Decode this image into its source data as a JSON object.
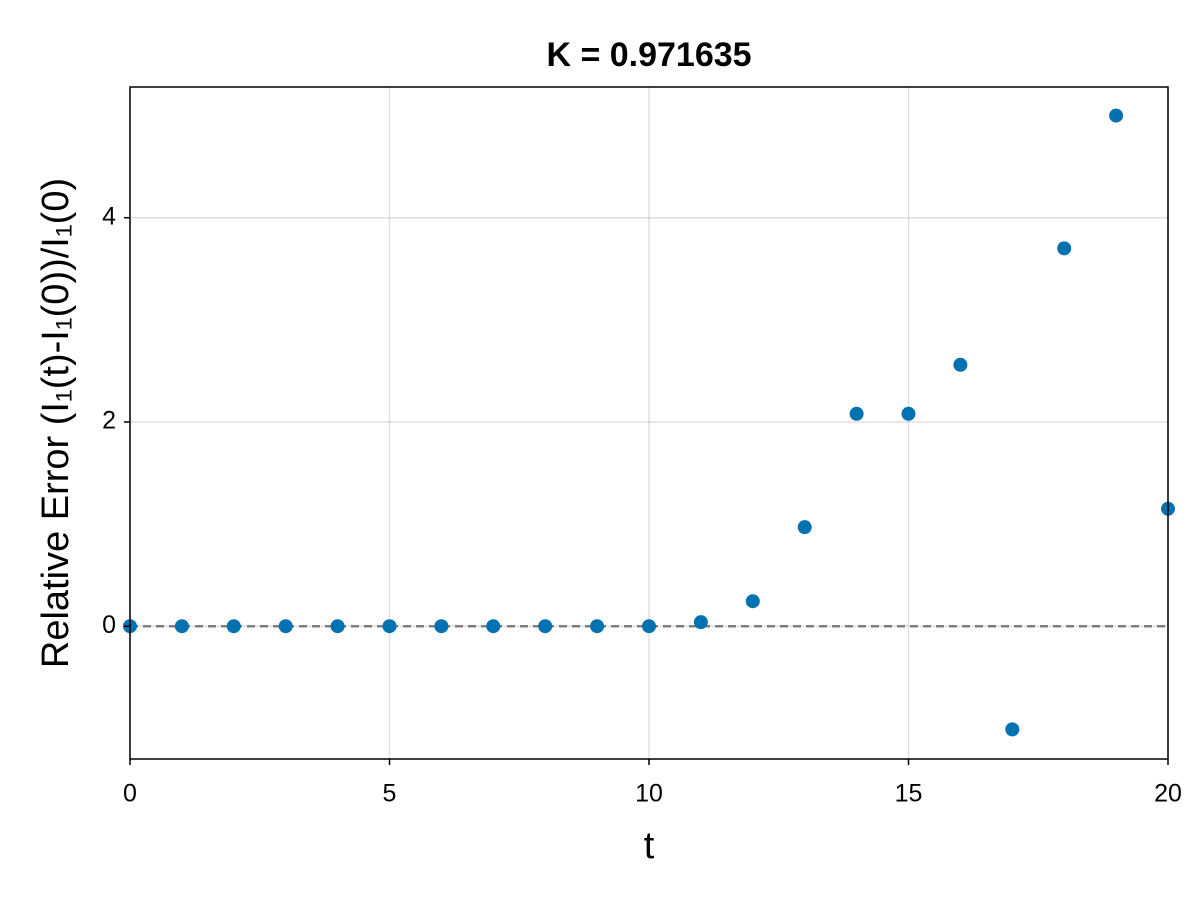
{
  "chart_data": {
    "type": "scatter",
    "title": "K = 0.971635",
    "x_label": "t",
    "y_label": "Relative Error (I₁(t)-I₁(0))/I₁(0)",
    "x": [
      0,
      1,
      2,
      3,
      4,
      5,
      6,
      7,
      8,
      9,
      10,
      11,
      12,
      13,
      14,
      15,
      16,
      17,
      18,
      19,
      20
    ],
    "series": [
      {
        "color": "#0072b2",
        "values": [
          0,
          0,
          0,
          0,
          0,
          0,
          0,
          0,
          0,
          0,
          0,
          0.04,
          0.245,
          0.97,
          2.08,
          2.08,
          2.56,
          -1.01,
          3.7,
          5.0,
          1.15
        ]
      }
    ],
    "xlim": [
      0,
      20
    ],
    "ylim": [
      -1.3,
      5.28
    ],
    "xticks": [
      0,
      5,
      10,
      15,
      20
    ],
    "yticks": [
      0,
      2,
      4
    ],
    "grid": true,
    "hline": 0
  }
}
